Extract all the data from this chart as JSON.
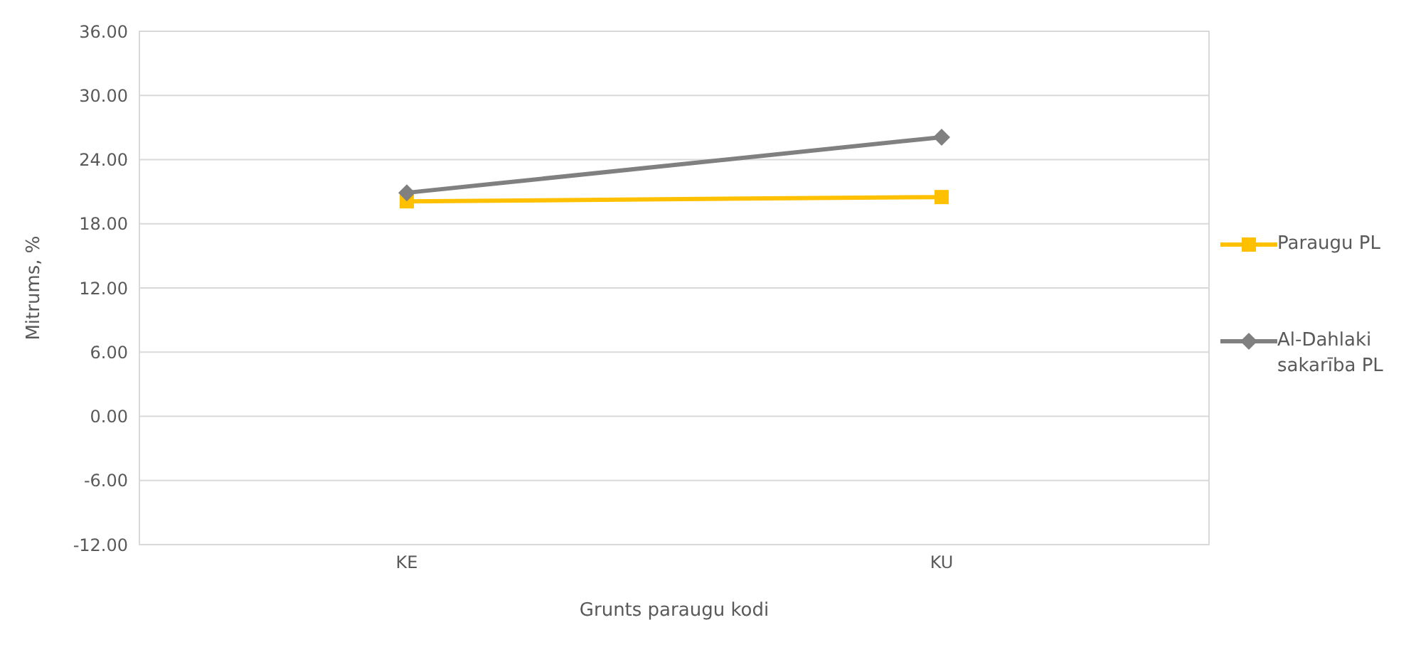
{
  "chart_data": {
    "type": "line",
    "xlabel": "Grunts paraugu kodi",
    "ylabel": "Mitrums, %",
    "categories": [
      "KE",
      "KU"
    ],
    "series": [
      {
        "name": "Paraugu PL",
        "color": "#ffc000",
        "values": [
          20.1,
          20.5
        ],
        "marker": "square"
      },
      {
        "name": "Al-Dahlaki sakarība PL",
        "color": "#808080",
        "values": [
          20.9,
          26.1
        ],
        "marker": "diamond"
      }
    ],
    "ylim": [
      -12,
      36
    ],
    "yticks": [
      {
        "value": -12,
        "label": "-12.00"
      },
      {
        "value": -6,
        "label": "-6.00"
      },
      {
        "value": 0,
        "label": "0.00"
      },
      {
        "value": 6,
        "label": "6.00"
      },
      {
        "value": 12,
        "label": "12.00"
      },
      {
        "value": 18,
        "label": "18.00"
      },
      {
        "value": 24,
        "label": "24.00"
      },
      {
        "value": 30,
        "label": "30.00"
      },
      {
        "value": 36,
        "label": "36.00"
      }
    ],
    "grid": "y",
    "legend": "right",
    "line_style": "solid"
  }
}
